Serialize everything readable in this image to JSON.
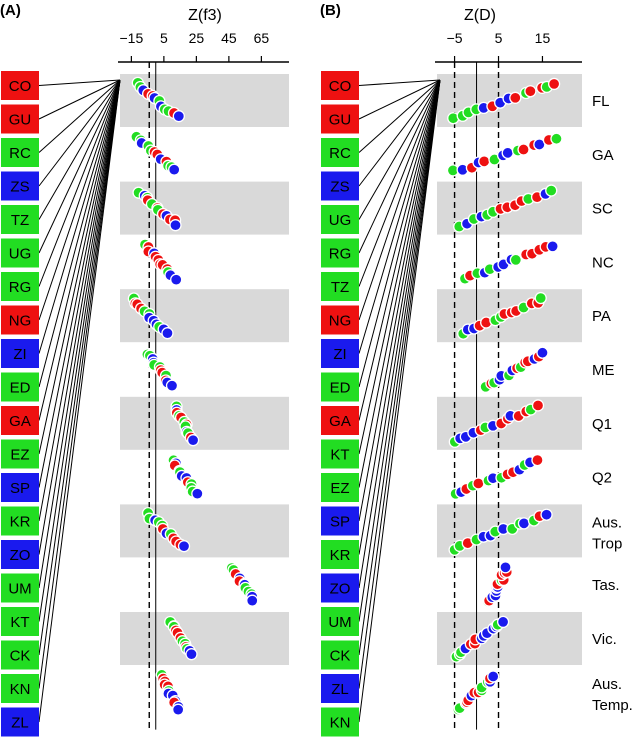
{
  "chart_data": [
    {
      "panel": "(A)",
      "type": "scatter",
      "title": "Z(f3)",
      "xticks": [
        -15,
        5,
        25,
        45,
        65
      ],
      "xtick_labels": [
        "−15",
        "5",
        "25",
        "45",
        "65"
      ],
      "xlim": [
        -22,
        82
      ],
      "solid_line_x": 0,
      "dashed_line_x": -4,
      "leaf_labels": [
        {
          "label": "CO",
          "color": "red"
        },
        {
          "label": "GU",
          "color": "red"
        },
        {
          "label": "RC",
          "color": "green"
        },
        {
          "label": "ZS",
          "color": "blue"
        },
        {
          "label": "TZ",
          "color": "green"
        },
        {
          "label": "UG",
          "color": "green"
        },
        {
          "label": "RG",
          "color": "green"
        },
        {
          "label": "NG",
          "color": "red"
        },
        {
          "label": "ZI",
          "color": "blue"
        },
        {
          "label": "ED",
          "color": "green"
        },
        {
          "label": "GA",
          "color": "red"
        },
        {
          "label": "EZ",
          "color": "green"
        },
        {
          "label": "SP",
          "color": "blue"
        },
        {
          "label": "KR",
          "color": "green"
        },
        {
          "label": "ZO",
          "color": "blue"
        },
        {
          "label": "UM",
          "color": "green"
        },
        {
          "label": "KT",
          "color": "green"
        },
        {
          "label": "CK",
          "color": "green"
        },
        {
          "label": "KN",
          "color": "green"
        },
        {
          "label": "ZL",
          "color": "blue"
        }
      ],
      "groups": [
        {
          "start": -11,
          "end": 13,
          "band": true
        },
        {
          "start": -12,
          "end": 12,
          "band": false
        },
        {
          "start": -10,
          "end": 13,
          "band": true
        },
        {
          "start": -7,
          "end": 12,
          "band": false
        },
        {
          "start": -14,
          "end": 6,
          "band": true
        },
        {
          "start": -5,
          "end": 9,
          "band": false
        },
        {
          "start": 12,
          "end": 23,
          "band": true
        },
        {
          "start": 10,
          "end": 25,
          "band": false
        },
        {
          "start": -5,
          "end": 17,
          "band": true
        },
        {
          "start": 48,
          "end": 60,
          "band": false
        },
        {
          "start": 10,
          "end": 22,
          "band": true
        },
        {
          "start": 3,
          "end": 14,
          "band": false
        }
      ]
    },
    {
      "panel": "(B)",
      "type": "scatter",
      "title": "Z(D)",
      "xticks": [
        -5,
        5,
        15
      ],
      "xtick_labels": [
        "−5",
        "5",
        "15"
      ],
      "xlim": [
        -9,
        24
      ],
      "solid_line_x": 0,
      "dashed_line_x": [
        -5,
        5
      ],
      "leaf_labels": [
        {
          "label": "CO",
          "color": "red"
        },
        {
          "label": "GU",
          "color": "red"
        },
        {
          "label": "RC",
          "color": "green"
        },
        {
          "label": "ZS",
          "color": "blue"
        },
        {
          "label": "UG",
          "color": "green"
        },
        {
          "label": "RG",
          "color": "green"
        },
        {
          "label": "TZ",
          "color": "green"
        },
        {
          "label": "NG",
          "color": "red"
        },
        {
          "label": "ZI",
          "color": "blue"
        },
        {
          "label": "ED",
          "color": "green"
        },
        {
          "label": "GA",
          "color": "red"
        },
        {
          "label": "KT",
          "color": "green"
        },
        {
          "label": "EZ",
          "color": "green"
        },
        {
          "label": "SP",
          "color": "blue"
        },
        {
          "label": "KR",
          "color": "green"
        },
        {
          "label": "ZO",
          "color": "blue"
        },
        {
          "label": "UM",
          "color": "green"
        },
        {
          "label": "CK",
          "color": "green"
        },
        {
          "label": "ZL",
          "color": "blue"
        },
        {
          "label": "KN",
          "color": "green"
        }
      ],
      "groups": [
        {
          "label": "FL",
          "start": -5,
          "end": 18,
          "band": true
        },
        {
          "label": "GA",
          "start": -5,
          "end": 18,
          "band": false
        },
        {
          "label": "SC",
          "start": -4,
          "end": 17,
          "band": true
        },
        {
          "label": "NC",
          "start": -3,
          "end": 17,
          "band": false
        },
        {
          "label": "PA",
          "start": -3,
          "end": 15,
          "band": true
        },
        {
          "label": "ME",
          "start": 2,
          "end": 15,
          "band": false
        },
        {
          "label": "Q1",
          "start": -5,
          "end": 14,
          "band": true
        },
        {
          "label": "Q2",
          "start": -5,
          "end": 14,
          "band": false
        },
        {
          "label": "Aus.\nTrop",
          "start": -5,
          "end": 16,
          "band": true
        },
        {
          "label": "Tas.",
          "start": 3,
          "end": 7,
          "band": false
        },
        {
          "label": "Vic.",
          "start": -5,
          "end": 6,
          "band": true
        },
        {
          "label": "Aus.\nTemp.",
          "start": -4,
          "end": 4,
          "band": false
        }
      ]
    }
  ],
  "colors": {
    "red": "#ee1111",
    "green": "#22dd22",
    "blue": "#1a1aee",
    "band": "#d9d9d9",
    "line": "#000000"
  }
}
